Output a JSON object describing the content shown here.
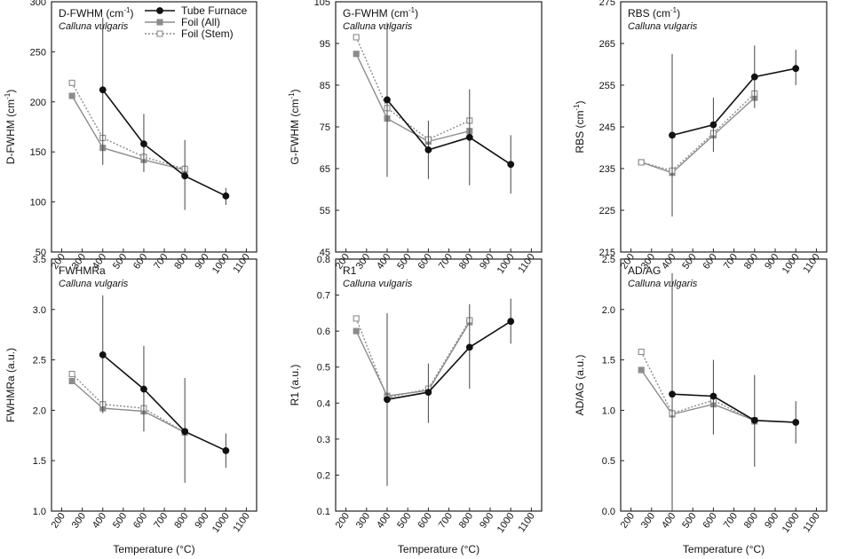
{
  "legend": [
    {
      "name": "Tube Furnace",
      "color": "#111111",
      "line": "solid",
      "marker": "circle-filled"
    },
    {
      "name": "Foil (All)",
      "color": "#8c8c8c",
      "line": "solid",
      "marker": "square-filled"
    },
    {
      "name": "Foil (Stem)",
      "color": "#8c8c8c",
      "line": "dotted",
      "marker": "square-open"
    }
  ],
  "chart_data": [
    {
      "id": "dfwhm",
      "type": "line",
      "title": "D-FWHM (cm",
      "title_sup": "-1",
      "title_end": ")",
      "subtitle": "Calluna vulgaris",
      "xlabel": "Temperature (°C)",
      "ylabel": "D-FWHM (cm",
      "ylabel_sup": "-1",
      "ylabel_end": ")",
      "xlim": [
        150,
        1150
      ],
      "xticks": [
        200,
        300,
        400,
        500,
        600,
        700,
        800,
        900,
        1000,
        1100
      ],
      "ylim": [
        50,
        300
      ],
      "yticks": [
        "50",
        "100",
        "150",
        "200",
        "250",
        "300"
      ],
      "series": [
        {
          "name": "Tube Furnace",
          "x": [
            400,
            600,
            800,
            1000
          ],
          "y": [
            212,
            158,
            126,
            106
          ],
          "err_low": [
            137,
            130,
            92,
            97
          ],
          "err_high": [
            284,
            188,
            162,
            114
          ]
        },
        {
          "name": "Foil (All)",
          "x": [
            250,
            400,
            600,
            800
          ],
          "y": [
            206,
            154,
            142,
            132
          ]
        },
        {
          "name": "Foil (Stem)",
          "x": [
            250,
            400,
            600,
            800
          ],
          "y": [
            219,
            164,
            145,
            133
          ]
        }
      ]
    },
    {
      "id": "gfwhm",
      "type": "line",
      "title": "G-FWHM (cm",
      "title_sup": "-1",
      "title_end": ")",
      "subtitle": "Calluna vulgaris",
      "xlabel": "Temperature (°C)",
      "ylabel": "G-FWHM (cm",
      "ylabel_sup": "-1",
      "ylabel_end": ")",
      "xlim": [
        150,
        1150
      ],
      "xticks": [
        200,
        300,
        400,
        500,
        600,
        700,
        800,
        900,
        1000,
        1100
      ],
      "ylim": [
        45,
        105
      ],
      "yticks": [
        "45",
        "55",
        "65",
        "75",
        "85",
        "95",
        "105"
      ],
      "series": [
        {
          "name": "Tube Furnace",
          "x": [
            400,
            600,
            800,
            1000
          ],
          "y": [
            81.5,
            69.5,
            72.5,
            66
          ],
          "err_low": [
            63,
            62.5,
            61,
            59
          ],
          "err_high": [
            100,
            76.5,
            84,
            73
          ]
        },
        {
          "name": "Foil (All)",
          "x": [
            250,
            400,
            600,
            800
          ],
          "y": [
            92.5,
            77,
            71.5,
            74
          ]
        },
        {
          "name": "Foil (Stem)",
          "x": [
            250,
            400,
            600,
            800
          ],
          "y": [
            96.5,
            79.5,
            72,
            76.5
          ]
        }
      ]
    },
    {
      "id": "rbs",
      "type": "line",
      "title": "RBS (cm",
      "title_sup": "-1",
      "title_end": ")",
      "subtitle": "Calluna vulgaris",
      "xlabel": "Temperature (°C)",
      "ylabel": "RBS (cm",
      "ylabel_sup": "-1",
      "ylabel_end": ")",
      "xlim": [
        150,
        1150
      ],
      "xticks": [
        200,
        300,
        400,
        500,
        600,
        700,
        800,
        900,
        1000,
        1100
      ],
      "ylim": [
        215,
        275
      ],
      "yticks": [
        "215",
        "225",
        "235",
        "245",
        "255",
        "265",
        "275"
      ],
      "series": [
        {
          "name": "Tube Furnace",
          "x": [
            400,
            600,
            800,
            1000
          ],
          "y": [
            243,
            245.5,
            257,
            259
          ],
          "err_low": [
            223.5,
            239,
            249.5,
            255
          ],
          "err_high": [
            262.5,
            252,
            264.5,
            263.5
          ]
        },
        {
          "name": "Foil (All)",
          "x": [
            250,
            400,
            600,
            800
          ],
          "y": [
            236.5,
            234,
            243,
            252
          ]
        },
        {
          "name": "Foil (Stem)",
          "x": [
            250,
            400,
            600,
            800
          ],
          "y": [
            236.5,
            234.5,
            243.5,
            253
          ]
        }
      ]
    },
    {
      "id": "fwhmra",
      "type": "line",
      "title": "FWHMRa",
      "title_sup": "",
      "title_end": "",
      "subtitle": "Calluna vulgaris",
      "xlabel": "Temperature (°C)",
      "ylabel": "FWHMRa (a.u.)",
      "ylabel_sup": "",
      "ylabel_end": "",
      "xlim": [
        150,
        1150
      ],
      "xticks": [
        200,
        300,
        400,
        500,
        600,
        700,
        800,
        900,
        1000,
        1100
      ],
      "ylim": [
        1.0,
        3.5
      ],
      "yticks": [
        "1.0",
        "1.5",
        "2.0",
        "2.5",
        "3.0",
        "3.5"
      ],
      "series": [
        {
          "name": "Tube Furnace",
          "x": [
            400,
            600,
            800,
            1000
          ],
          "y": [
            2.55,
            2.21,
            1.79,
            1.6
          ],
          "err_low": [
            1.97,
            1.79,
            1.28,
            1.43
          ],
          "err_high": [
            3.14,
            2.64,
            2.32,
            1.77
          ]
        },
        {
          "name": "Foil (All)",
          "x": [
            250,
            400,
            600,
            800
          ],
          "y": [
            2.29,
            2.02,
            1.99,
            1.78
          ]
        },
        {
          "name": "Foil (Stem)",
          "x": [
            250,
            400,
            600,
            800
          ],
          "y": [
            2.36,
            2.06,
            2.02,
            1.78
          ]
        }
      ]
    },
    {
      "id": "r1",
      "type": "line",
      "title": "R1",
      "title_sup": "",
      "title_end": "",
      "subtitle": "Calluna vulgaris",
      "xlabel": "Temperature (°C)",
      "ylabel": "R1 (a.u.)",
      "ylabel_sup": "",
      "ylabel_end": "",
      "xlim": [
        150,
        1150
      ],
      "xticks": [
        200,
        300,
        400,
        500,
        600,
        700,
        800,
        900,
        1000,
        1100
      ],
      "ylim": [
        0.1,
        0.8
      ],
      "yticks": [
        "0.1",
        "0.2",
        "0.3",
        "0.4",
        "0.5",
        "0.6",
        "0.7",
        "0.8"
      ],
      "series": [
        {
          "name": "Tube Furnace",
          "x": [
            400,
            600,
            800,
            1000
          ],
          "y": [
            0.41,
            0.43,
            0.555,
            0.627
          ],
          "err_low": [
            0.17,
            0.345,
            0.44,
            0.565
          ],
          "err_high": [
            0.65,
            0.51,
            0.675,
            0.69
          ]
        },
        {
          "name": "Foil (All)",
          "x": [
            250,
            400,
            600,
            800
          ],
          "y": [
            0.6,
            0.42,
            0.435,
            0.625
          ]
        },
        {
          "name": "Foil (Stem)",
          "x": [
            250,
            400,
            600,
            800
          ],
          "y": [
            0.635,
            0.415,
            0.44,
            0.63
          ]
        }
      ]
    },
    {
      "id": "adag",
      "type": "line",
      "title": "AD/AG",
      "title_sup": "",
      "title_end": "",
      "subtitle": "Calluna vulgaris",
      "xlabel": "Temperature (°C)",
      "ylabel": "AD/AG (a.u.)",
      "ylabel_sup": "",
      "ylabel_end": "",
      "xlim": [
        150,
        1150
      ],
      "xticks": [
        200,
        300,
        400,
        500,
        600,
        700,
        800,
        900,
        1000,
        1100
      ],
      "ylim": [
        0.0,
        2.5
      ],
      "yticks": [
        "0.0",
        "0.5",
        "1.0",
        "1.5",
        "2.0",
        "2.5"
      ],
      "series": [
        {
          "name": "Tube Furnace",
          "x": [
            400,
            600,
            800,
            1000
          ],
          "y": [
            1.16,
            1.14,
            0.9,
            0.88
          ],
          "err_low": [
            0.0,
            0.76,
            0.44,
            0.67
          ],
          "err_high": [
            2.36,
            1.5,
            1.35,
            1.09
          ]
        },
        {
          "name": "Foil (All)",
          "x": [
            250,
            400,
            600,
            800
          ],
          "y": [
            1.4,
            0.96,
            1.06,
            0.9
          ]
        },
        {
          "name": "Foil (Stem)",
          "x": [
            250,
            400,
            600,
            800
          ],
          "y": [
            1.58,
            0.97,
            1.1,
            0.89
          ]
        }
      ]
    }
  ]
}
